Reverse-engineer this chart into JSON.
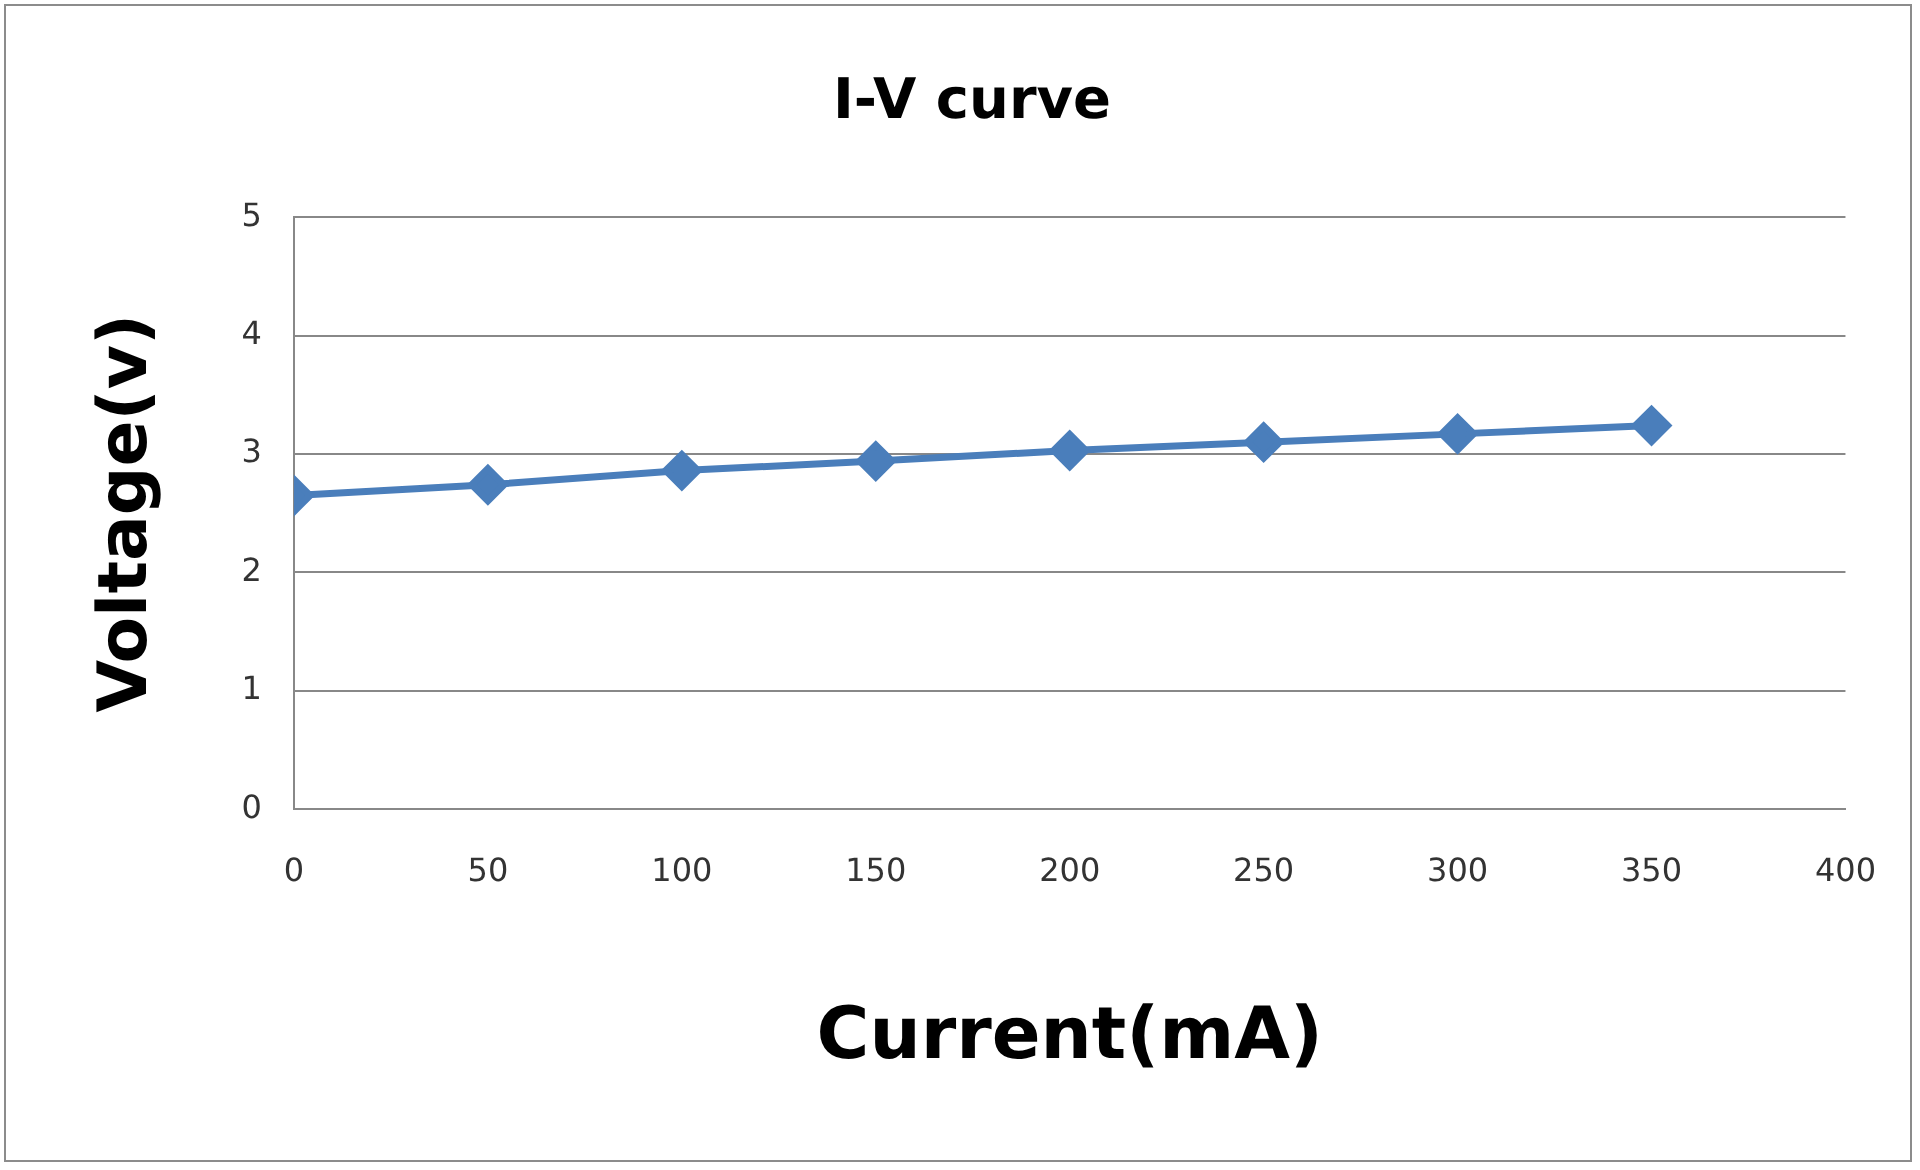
{
  "chart_data": {
    "type": "line",
    "title": "I-V curve",
    "xlabel": "Current(mA)",
    "ylabel": "Voltage(v)",
    "x": [
      0,
      50,
      100,
      150,
      200,
      250,
      300,
      350
    ],
    "series": [
      {
        "color": "#4a7ebb",
        "values": [
          2.65,
          2.74,
          2.86,
          2.94,
          3.03,
          3.1,
          3.17,
          3.24
        ]
      }
    ],
    "xlim": [
      0,
      400
    ],
    "xticks": [
      0,
      50,
      100,
      150,
      200,
      250,
      300,
      350,
      400
    ],
    "ylim": [
      0,
      5
    ],
    "yticks": [
      0,
      1,
      2,
      3,
      4,
      5
    ],
    "grid": "y",
    "legend": false,
    "marker": "diamond",
    "line_style": "solid"
  }
}
